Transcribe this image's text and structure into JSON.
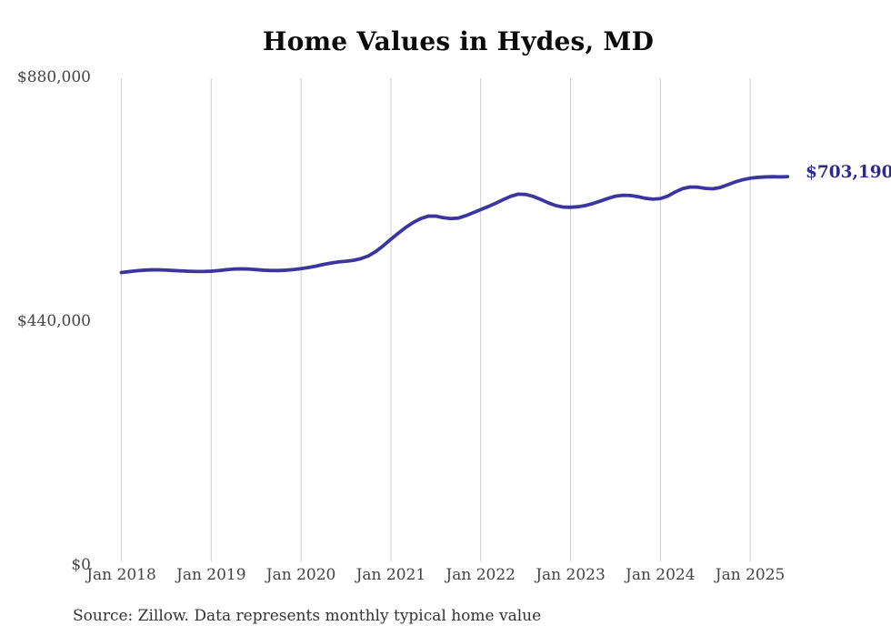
{
  "title": "Home Values in Hydes, MD",
  "source_note": "Source: Zillow. Data represents monthly typical home value",
  "end_label": "$703,190",
  "colors": {
    "line": "#3b35a0",
    "end_label_text": "#2d2a8e",
    "gridline": "#cccccc",
    "axis_text": "#444444",
    "title_text": "#0a0a0a",
    "source_text": "#333333",
    "background": "#ffffff"
  },
  "y_axis": {
    "ticks": [
      {
        "label": "$880,000",
        "value": 880000
      },
      {
        "label": "$440,000",
        "value": 440000
      },
      {
        "label": "$0",
        "value": 0
      }
    ]
  },
  "x_axis": {
    "ticks": [
      "Jan 2018",
      "Jan 2019",
      "Jan 2020",
      "Jan 2021",
      "Jan 2022",
      "Jan 2023",
      "Jan 2024",
      "Jan 2025"
    ]
  },
  "chart_data": {
    "type": "line",
    "title": "Home Values in Hydes, MD",
    "series_name": "Monthly typical home value (Zillow)",
    "final_value": 703190,
    "final_value_label": "$703,190",
    "ylim": [
      0,
      880000
    ],
    "y_ticks": [
      0,
      440000,
      880000
    ],
    "grid": "vertical-only",
    "legend_position": "none",
    "x": [
      "2018-01",
      "2018-02",
      "2018-03",
      "2018-04",
      "2018-05",
      "2018-06",
      "2018-07",
      "2018-08",
      "2018-09",
      "2018-10",
      "2018-11",
      "2018-12",
      "2019-01",
      "2019-02",
      "2019-03",
      "2019-04",
      "2019-05",
      "2019-06",
      "2019-07",
      "2019-08",
      "2019-09",
      "2019-10",
      "2019-11",
      "2019-12",
      "2020-01",
      "2020-02",
      "2020-03",
      "2020-04",
      "2020-05",
      "2020-06",
      "2020-07",
      "2020-08",
      "2020-09",
      "2020-10",
      "2020-11",
      "2020-12",
      "2021-01",
      "2021-02",
      "2021-03",
      "2021-04",
      "2021-05",
      "2021-06",
      "2021-07",
      "2021-08",
      "2021-09",
      "2021-10",
      "2021-11",
      "2021-12",
      "2022-01",
      "2022-02",
      "2022-03",
      "2022-04",
      "2022-05",
      "2022-06",
      "2022-07",
      "2022-08",
      "2022-09",
      "2022-10",
      "2022-11",
      "2022-12",
      "2023-01",
      "2023-02",
      "2023-03",
      "2023-04",
      "2023-05",
      "2023-06",
      "2023-07",
      "2023-08",
      "2023-09",
      "2023-10",
      "2023-11",
      "2023-12",
      "2024-01",
      "2024-02",
      "2024-03",
      "2024-04",
      "2024-05",
      "2024-06",
      "2024-07",
      "2024-08",
      "2024-09",
      "2024-10",
      "2024-11",
      "2024-12",
      "2025-01",
      "2025-02",
      "2025-03",
      "2025-04",
      "2025-05",
      "2025-06"
    ],
    "values": [
      530000,
      531500,
      533000,
      534200,
      534800,
      534800,
      534300,
      533600,
      532800,
      532200,
      531800,
      531800,
      532300,
      533500,
      535000,
      536200,
      536600,
      536200,
      535200,
      534200,
      533600,
      533600,
      534200,
      535300,
      537000,
      539000,
      541500,
      544500,
      547000,
      549000,
      550300,
      552000,
      555000,
      560000,
      568000,
      578500,
      590000,
      601000,
      611500,
      620500,
      627500,
      631800,
      631800,
      629000,
      627300,
      628300,
      632500,
      638000,
      643500,
      649000,
      655000,
      661500,
      667500,
      671500,
      671000,
      667500,
      662000,
      656000,
      651000,
      648200,
      647800,
      648800,
      651000,
      654500,
      659000,
      663800,
      667800,
      669500,
      669000,
      667000,
      664000,
      662500,
      663500,
      668000,
      675500,
      681500,
      684500,
      684000,
      682000,
      681200,
      683500,
      688500,
      693500,
      697500,
      700200,
      701800,
      702600,
      703000,
      702600,
      703190
    ]
  }
}
